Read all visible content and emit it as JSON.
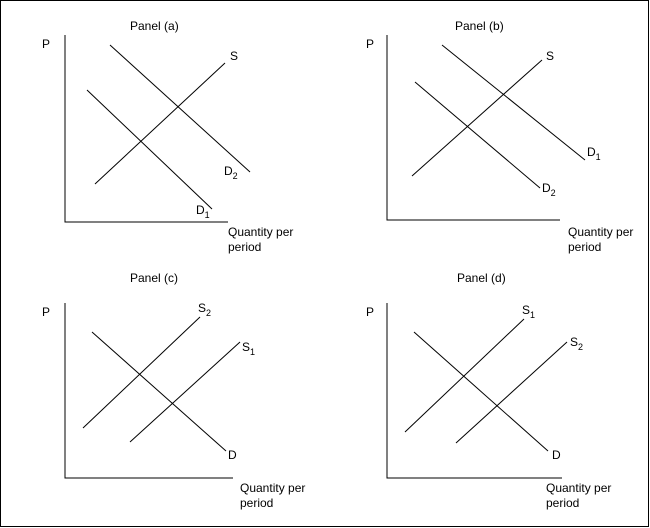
{
  "panels": [
    {
      "id": "a",
      "title": "Panel (a)",
      "y_label": "P",
      "x_label_line1": "Quantity per",
      "x_label_line2": "period",
      "curves": [
        {
          "id": "S",
          "label": "S",
          "sub": ""
        },
        {
          "id": "D2",
          "label": "D",
          "sub": "2"
        },
        {
          "id": "D1",
          "label": "D",
          "sub": "1"
        }
      ]
    },
    {
      "id": "b",
      "title": "Panel (b)",
      "y_label": "P",
      "x_label_line1": "Quantity per",
      "x_label_line2": "period",
      "curves": [
        {
          "id": "S",
          "label": "S",
          "sub": ""
        },
        {
          "id": "D1",
          "label": "D",
          "sub": "1"
        },
        {
          "id": "D2",
          "label": "D",
          "sub": "2"
        }
      ]
    },
    {
      "id": "c",
      "title": "Panel (c)",
      "y_label": "P",
      "x_label_line1": "Quantity per",
      "x_label_line2": "period",
      "curves": [
        {
          "id": "S2",
          "label": "S",
          "sub": "2"
        },
        {
          "id": "S1",
          "label": "S",
          "sub": "1"
        },
        {
          "id": "D",
          "label": "D",
          "sub": ""
        }
      ]
    },
    {
      "id": "d",
      "title": "Panel (d)",
      "y_label": "P",
      "x_label_line1": "Quantity per",
      "x_label_line2": "period",
      "curves": [
        {
          "id": "S1",
          "label": "S",
          "sub": "1"
        },
        {
          "id": "S2",
          "label": "S",
          "sub": "2"
        },
        {
          "id": "D",
          "label": "D",
          "sub": ""
        }
      ]
    }
  ]
}
